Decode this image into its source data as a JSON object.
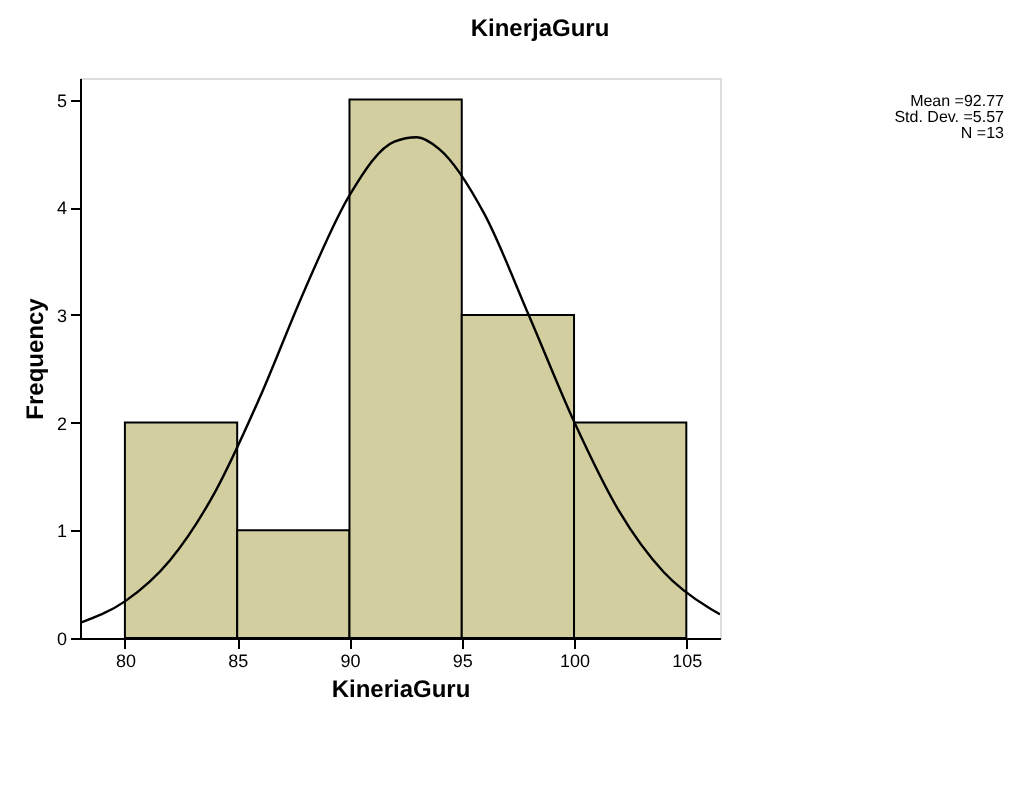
{
  "chart_data": {
    "type": "histogram",
    "title": "KinerjaGuru",
    "xlabel": "KineriaGuru",
    "ylabel": "Frequency",
    "bins": [
      80,
      85,
      90,
      95,
      100,
      105
    ],
    "values": [
      2,
      1,
      5,
      3,
      2
    ],
    "color": "#d3cea0",
    "series": [
      {
        "type": "line",
        "color": "#000000",
        "x": [
          78,
          80,
          82,
          84,
          86,
          88,
          90,
          92,
          93,
          94,
          96,
          98,
          100,
          102,
          104,
          106,
          106.5
        ],
        "values": [
          0.14,
          0.34,
          0.72,
          1.35,
          2.23,
          3.23,
          4.11,
          4.61,
          4.65,
          4.54,
          3.94,
          2.99,
          2.01,
          1.18,
          0.61,
          0.28,
          0.22
        ]
      }
    ],
    "xlim": [
      78,
      106.5
    ],
    "ylim": [
      0,
      5.2
    ],
    "xticks": [
      80,
      85,
      90,
      95,
      100,
      105
    ],
    "yticks": [
      0,
      1,
      2,
      3,
      4,
      5
    ],
    "grid": false,
    "annotations": [
      "Mean =92.77",
      "Std. Dev. =5.57",
      "N =13"
    ]
  }
}
